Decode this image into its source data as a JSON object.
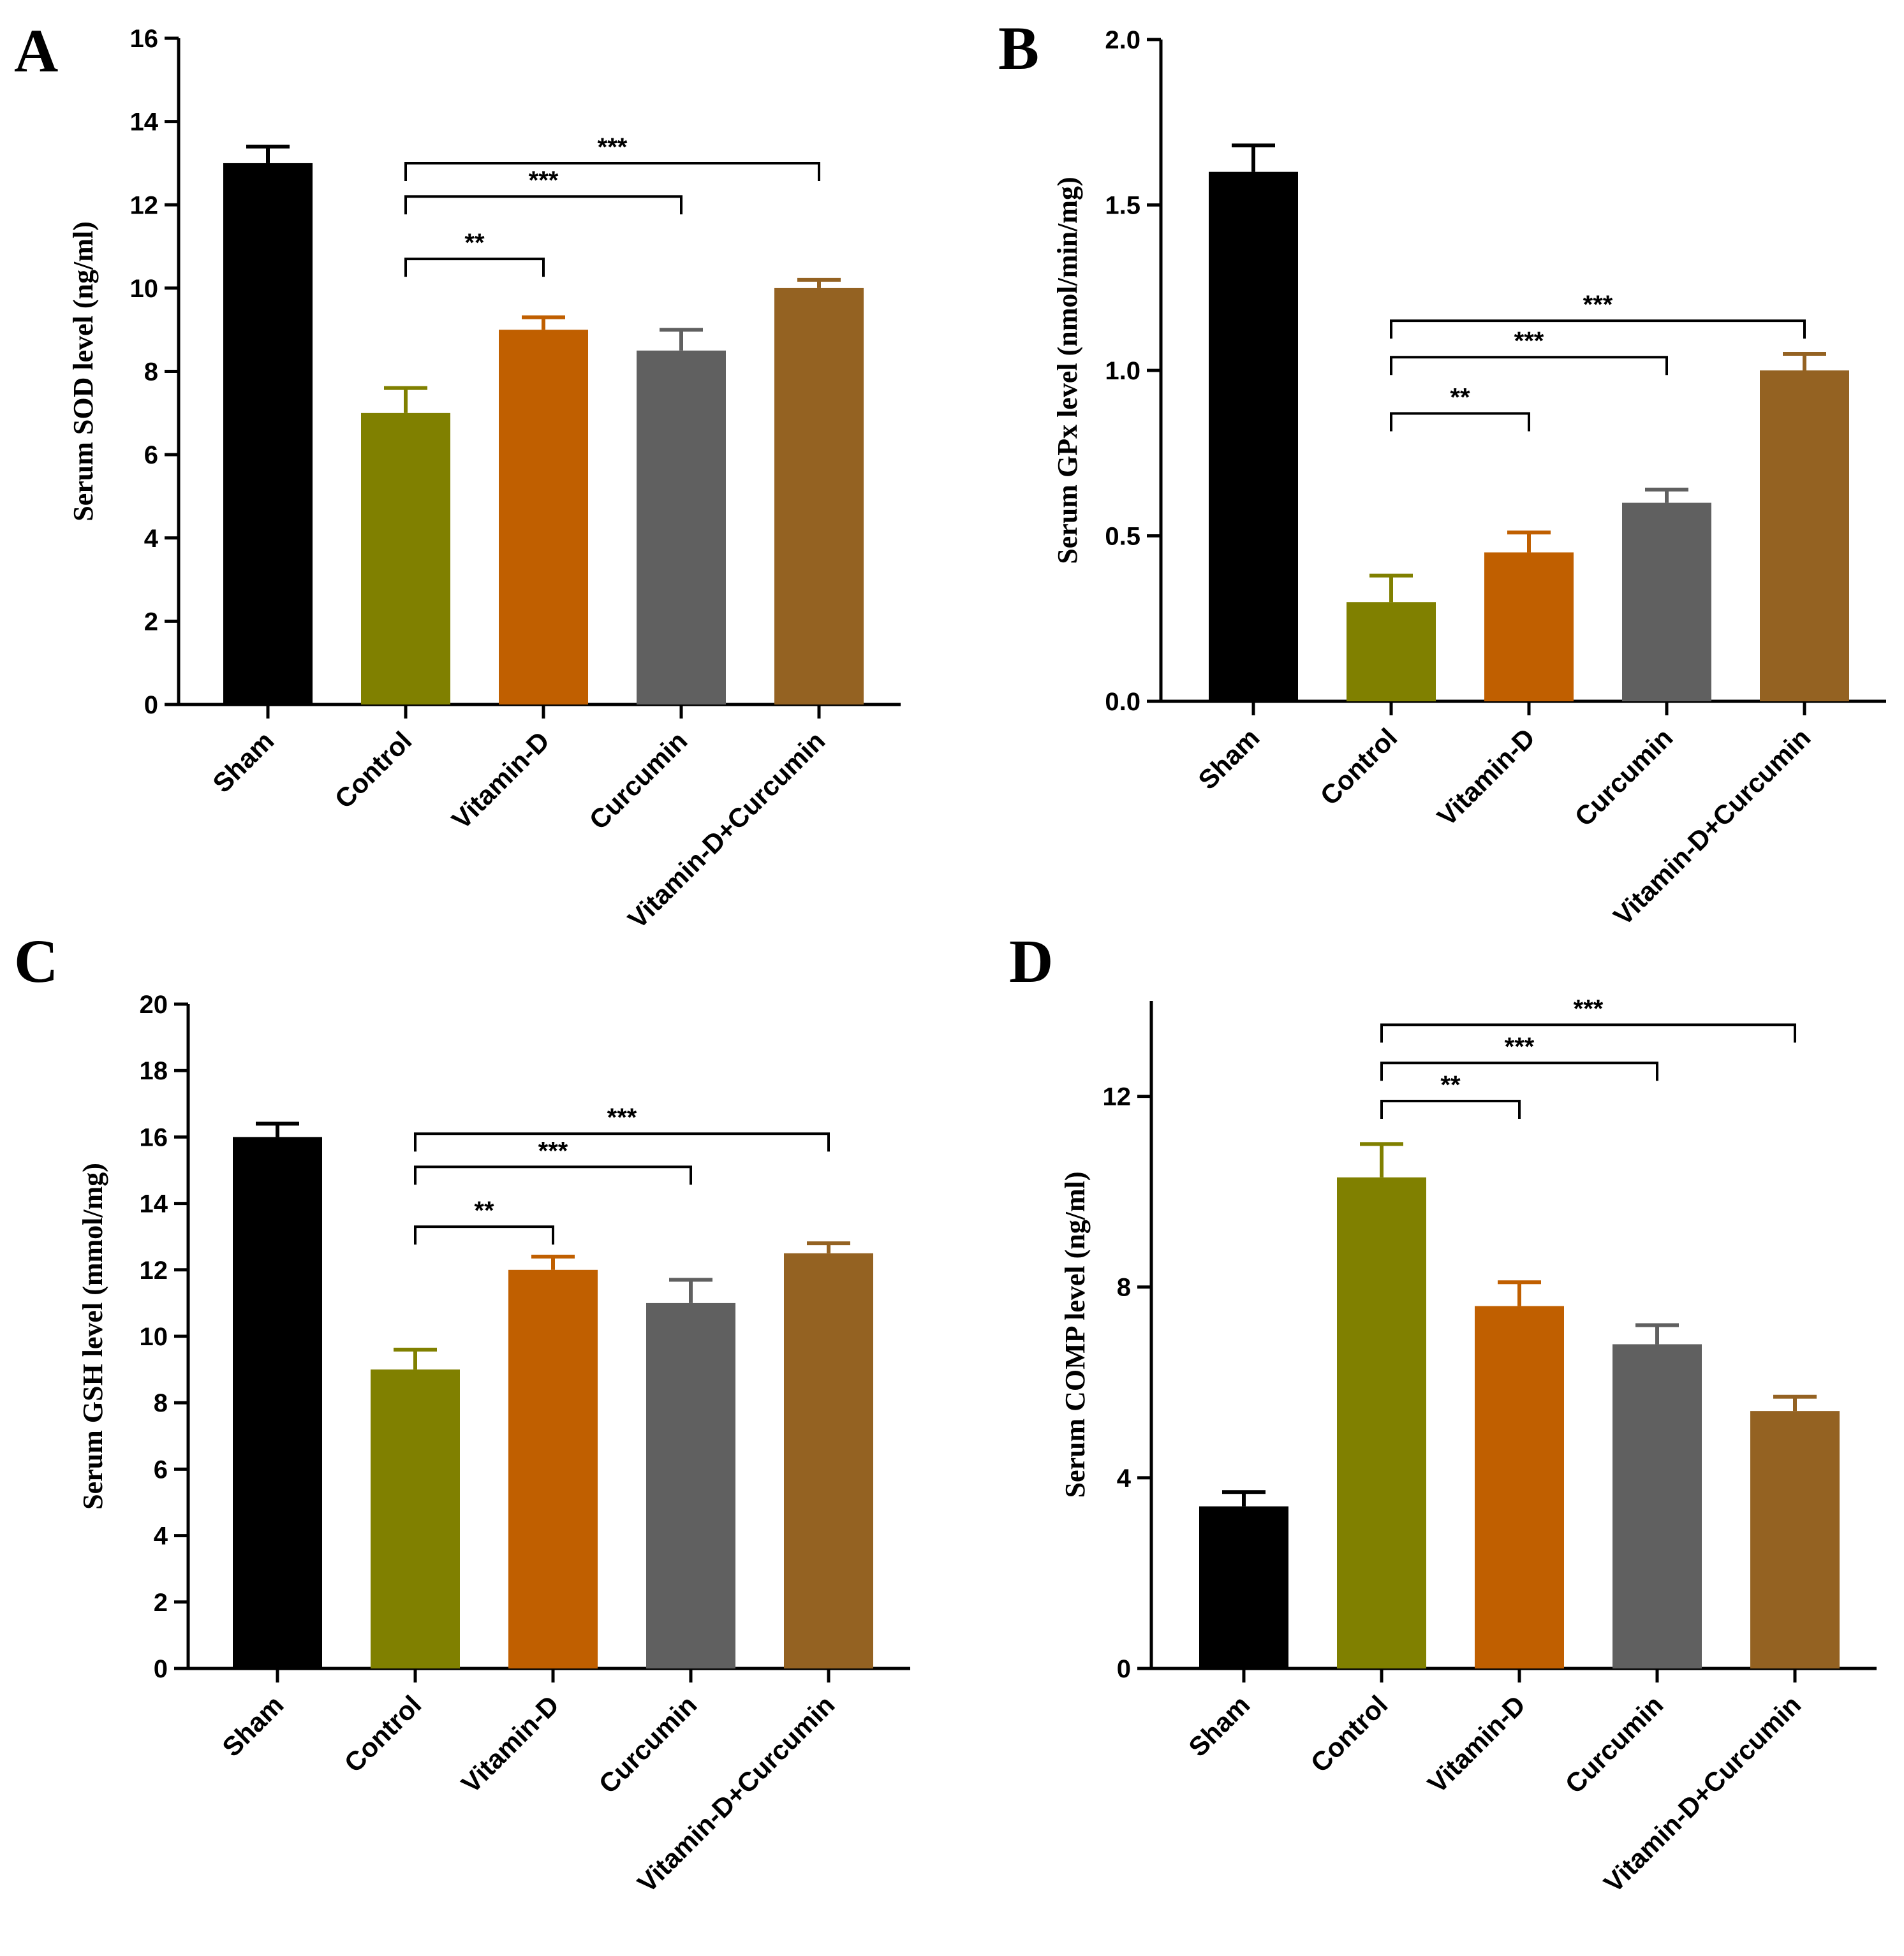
{
  "colors": {
    "sham": "#000000",
    "control": "#808000",
    "vitamin_d": "#C05F00",
    "curcumin": "#606060",
    "combo": "#946222",
    "axis": "#000000"
  },
  "chart_data": [
    {
      "panel": "A",
      "type": "bar",
      "ylabel": "Serum SOD level (ng/ml)",
      "categories": [
        "Sham",
        "Control",
        "Vitamin-D",
        "Curcumin",
        "Vitamin-D+Curcumin"
      ],
      "values": [
        13.0,
        7.0,
        9.0,
        8.5,
        10.0
      ],
      "errors": [
        0.4,
        0.6,
        0.3,
        0.5,
        0.2
      ],
      "ylim": [
        0,
        16
      ],
      "yticks": [
        "0",
        "2",
        "4",
        "6",
        "8",
        "10",
        "12",
        "14",
        "16"
      ],
      "ytick_values": [
        0,
        2,
        4,
        6,
        8,
        10,
        12,
        14,
        16
      ],
      "significance": [
        {
          "from": 1,
          "to": 2,
          "y": 10.7,
          "label": "**"
        },
        {
          "from": 1,
          "to": 3,
          "y": 12.2,
          "label": "***"
        },
        {
          "from": 1,
          "to": 4,
          "y": 13.0,
          "label": "***"
        }
      ]
    },
    {
      "panel": "B",
      "type": "bar",
      "ylabel": "Serum GPx level (nmol/min/mg)",
      "categories": [
        "Sham",
        "Control",
        "Vitamin-D",
        "Curcumin",
        "Vitamin-D+Curcumin"
      ],
      "values": [
        1.6,
        0.3,
        0.45,
        0.6,
        1.0
      ],
      "errors": [
        0.08,
        0.08,
        0.06,
        0.04,
        0.05
      ],
      "ylim": [
        0,
        2.0
      ],
      "yticks": [
        "0.0",
        "0.5",
        "1.0",
        "1.5",
        "2.0"
      ],
      "ytick_values": [
        0,
        0.5,
        1.0,
        1.5,
        2.0
      ],
      "significance": [
        {
          "from": 1,
          "to": 2,
          "y": 0.87,
          "label": "**"
        },
        {
          "from": 1,
          "to": 3,
          "y": 1.04,
          "label": "***"
        },
        {
          "from": 1,
          "to": 4,
          "y": 1.15,
          "label": "***"
        }
      ]
    },
    {
      "panel": "C",
      "type": "bar",
      "ylabel": "Serum GSH level (mmol/mg)",
      "categories": [
        "Sham",
        "Control",
        "Vitamin-D",
        "Curcumin",
        "Vitamin-D+Curcumin"
      ],
      "values": [
        16.0,
        9.0,
        12.0,
        11.0,
        12.5
      ],
      "errors": [
        0.4,
        0.6,
        0.4,
        0.7,
        0.3
      ],
      "ylim": [
        0,
        20
      ],
      "yticks": [
        "0",
        "2",
        "4",
        "6",
        "8",
        "10",
        "12",
        "14",
        "16",
        "18",
        "20"
      ],
      "ytick_values": [
        0,
        2,
        4,
        6,
        8,
        10,
        12,
        14,
        16,
        18,
        20
      ],
      "significance": [
        {
          "from": 1,
          "to": 2,
          "y": 13.3,
          "label": "**"
        },
        {
          "from": 1,
          "to": 3,
          "y": 15.1,
          "label": "***"
        },
        {
          "from": 1,
          "to": 4,
          "y": 16.1,
          "label": "***"
        }
      ]
    },
    {
      "panel": "D",
      "type": "bar",
      "ylabel": "Serum COMP level (ng/ml)",
      "categories": [
        "Sham",
        "Control",
        "Vitamin-D",
        "Curcumin",
        "Vitamin-D+Curcumin"
      ],
      "values": [
        3.4,
        10.3,
        7.6,
        6.8,
        5.4
      ],
      "errors": [
        0.3,
        0.7,
        0.5,
        0.4,
        0.3
      ],
      "ylim": [
        0,
        14
      ],
      "yticks": [
        "0",
        "4",
        "8",
        "12"
      ],
      "ytick_values": [
        0,
        4,
        8,
        12
      ],
      "significance": [
        {
          "from": 1,
          "to": 2,
          "y": 11.9,
          "label": "**"
        },
        {
          "from": 1,
          "to": 3,
          "y": 12.7,
          "label": "***"
        },
        {
          "from": 1,
          "to": 4,
          "y": 13.5,
          "label": "***"
        }
      ]
    }
  ]
}
